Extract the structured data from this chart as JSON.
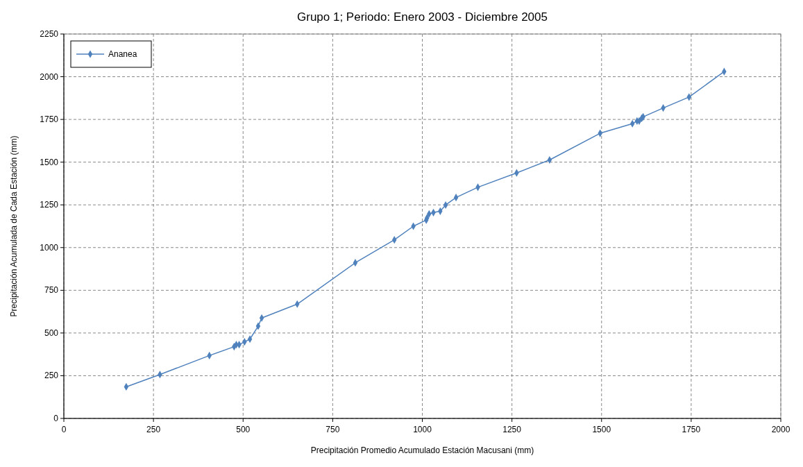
{
  "chart_data": {
    "type": "line",
    "title": "Grupo 1; Periodo: Enero 2003 - Diciembre 2005",
    "xlabel": "Precipitación Promedio  Acumulado Estación Macusani (mm)",
    "ylabel": "Precipitación Acumulada de Cada Estación (mm)",
    "series": [
      {
        "name": "Ananea",
        "color": "#4f81bd",
        "x": [
          174,
          268,
          406,
          475,
          481,
          489,
          504,
          519,
          542,
          552,
          651,
          813,
          922,
          975,
          1011,
          1013,
          1019,
          1031,
          1050,
          1065,
          1094,
          1155,
          1263,
          1355,
          1496,
          1586,
          1599,
          1605,
          1612,
          1616,
          1672,
          1744,
          1842
        ],
        "values": [
          185,
          257,
          368,
          420,
          432,
          432,
          448,
          464,
          540,
          588,
          669,
          911,
          1045,
          1125,
          1161,
          1173,
          1197,
          1205,
          1213,
          1249,
          1293,
          1353,
          1437,
          1513,
          1669,
          1725,
          1741,
          1741,
          1757,
          1765,
          1817,
          1881,
          2030
        ]
      }
    ],
    "xlim": [
      0,
      2000
    ],
    "xticks": [
      0,
      250,
      500,
      750,
      1000,
      1250,
      1500,
      1750,
      2000
    ],
    "ylim": [
      0,
      2250
    ],
    "yticks": [
      0,
      250,
      500,
      750,
      1000,
      1250,
      1500,
      1750,
      2000,
      2250
    ],
    "grid": true,
    "legend": "top left",
    "marker": "diamond",
    "line_style": "solid"
  }
}
